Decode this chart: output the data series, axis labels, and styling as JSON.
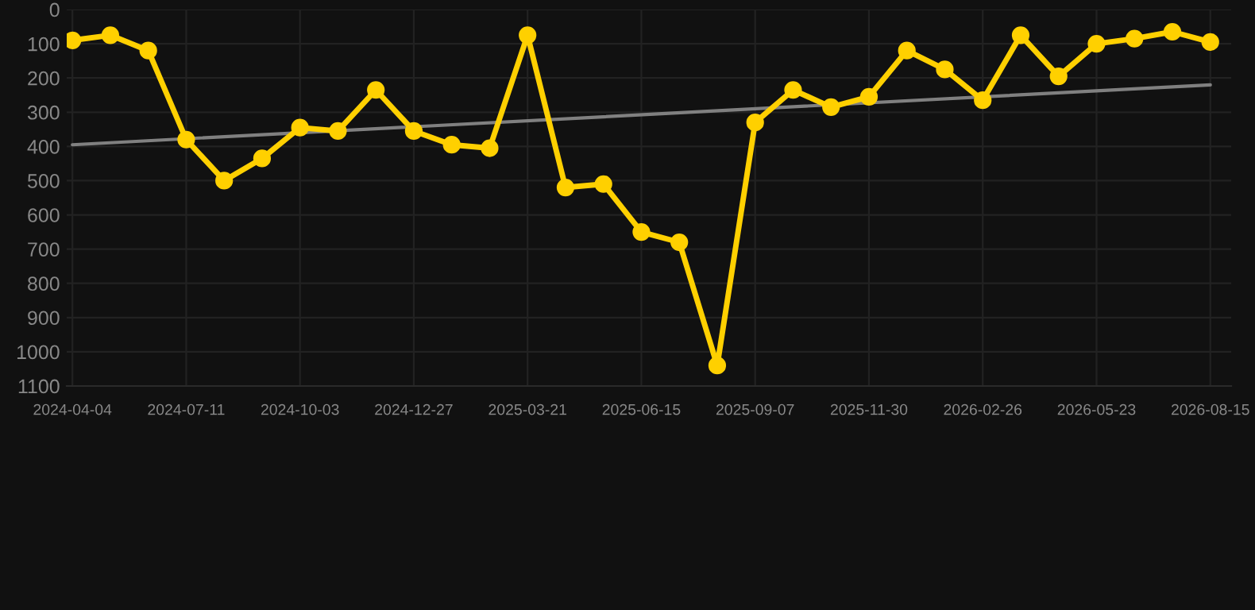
{
  "chart_data": {
    "type": "line",
    "categories": [
      "2024-04-04",
      null,
      null,
      "2024-07-11",
      null,
      null,
      "2024-10-03",
      null,
      null,
      "2024-12-27",
      null,
      null,
      "2025-03-21",
      null,
      null,
      "2025-06-15",
      null,
      null,
      "2025-09-07",
      null,
      null,
      "2025-11-30",
      null,
      null,
      "2026-02-26",
      null,
      null,
      "2026-05-23",
      null,
      null,
      "2026-08-15"
    ],
    "series": [
      {
        "color": "#ffd000",
        "marker": "circle",
        "values": [
          90,
          75,
          120,
          380,
          500,
          435,
          345,
          355,
          235,
          355,
          395,
          405,
          75,
          520,
          510,
          650,
          680,
          1040,
          330,
          235,
          285,
          255,
          120,
          175,
          265,
          75,
          195,
          100,
          85,
          65,
          95
        ]
      },
      {
        "color": "#808080",
        "marker": "none",
        "values": [
          395,
          null,
          null,
          null,
          null,
          null,
          null,
          null,
          null,
          null,
          null,
          null,
          null,
          null,
          null,
          null,
          null,
          null,
          null,
          null,
          null,
          null,
          null,
          null,
          null,
          null,
          null,
          null,
          null,
          null,
          220
        ]
      }
    ],
    "ylim": [
      1100,
      0
    ],
    "yticks": [
      0,
      100,
      200,
      300,
      400,
      500,
      600,
      700,
      800,
      900,
      1000,
      1100
    ],
    "grid": true,
    "line_style": "solid"
  }
}
